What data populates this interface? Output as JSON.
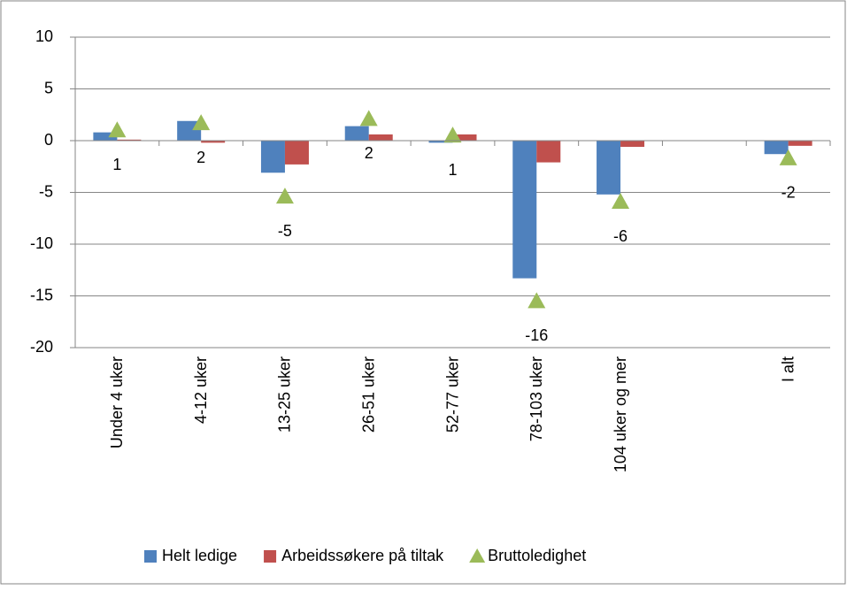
{
  "chart_data": {
    "type": "bar",
    "categories": [
      "Under 4 uker",
      "4-12 uker",
      "13-25 uker",
      "26-51 uker",
      "52-77 uker",
      "78-103 uker",
      "104 uker og mer",
      null,
      "I alt"
    ],
    "series": [
      {
        "name": "Helt ledige",
        "color": "#4f81bd",
        "type": "bar",
        "values": [
          0.8,
          1.9,
          -3.1,
          1.4,
          -0.2,
          -13.3,
          -5.2,
          null,
          -1.3
        ]
      },
      {
        "name": "Arbeidssøkere på tiltak",
        "color": "#c0504d",
        "type": "bar",
        "values": [
          0.1,
          -0.2,
          -2.3,
          0.6,
          0.6,
          -2.1,
          -0.6,
          null,
          -0.5
        ]
      },
      {
        "name": "Bruttoledighet",
        "color": "#9bbb59",
        "type": "marker",
        "values": [
          1.0,
          1.7,
          -5.4,
          2.1,
          0.5,
          -15.5,
          -5.9,
          null,
          -1.7
        ],
        "value_labels": [
          "1",
          "2",
          "-5",
          "2",
          "1",
          "-16",
          "-6",
          null,
          "-2"
        ]
      }
    ],
    "ylim": [
      -20,
      10
    ],
    "yticks": [
      -20,
      -15,
      -10,
      -5,
      0,
      5,
      10
    ],
    "grid": true,
    "legend": "bottom"
  }
}
